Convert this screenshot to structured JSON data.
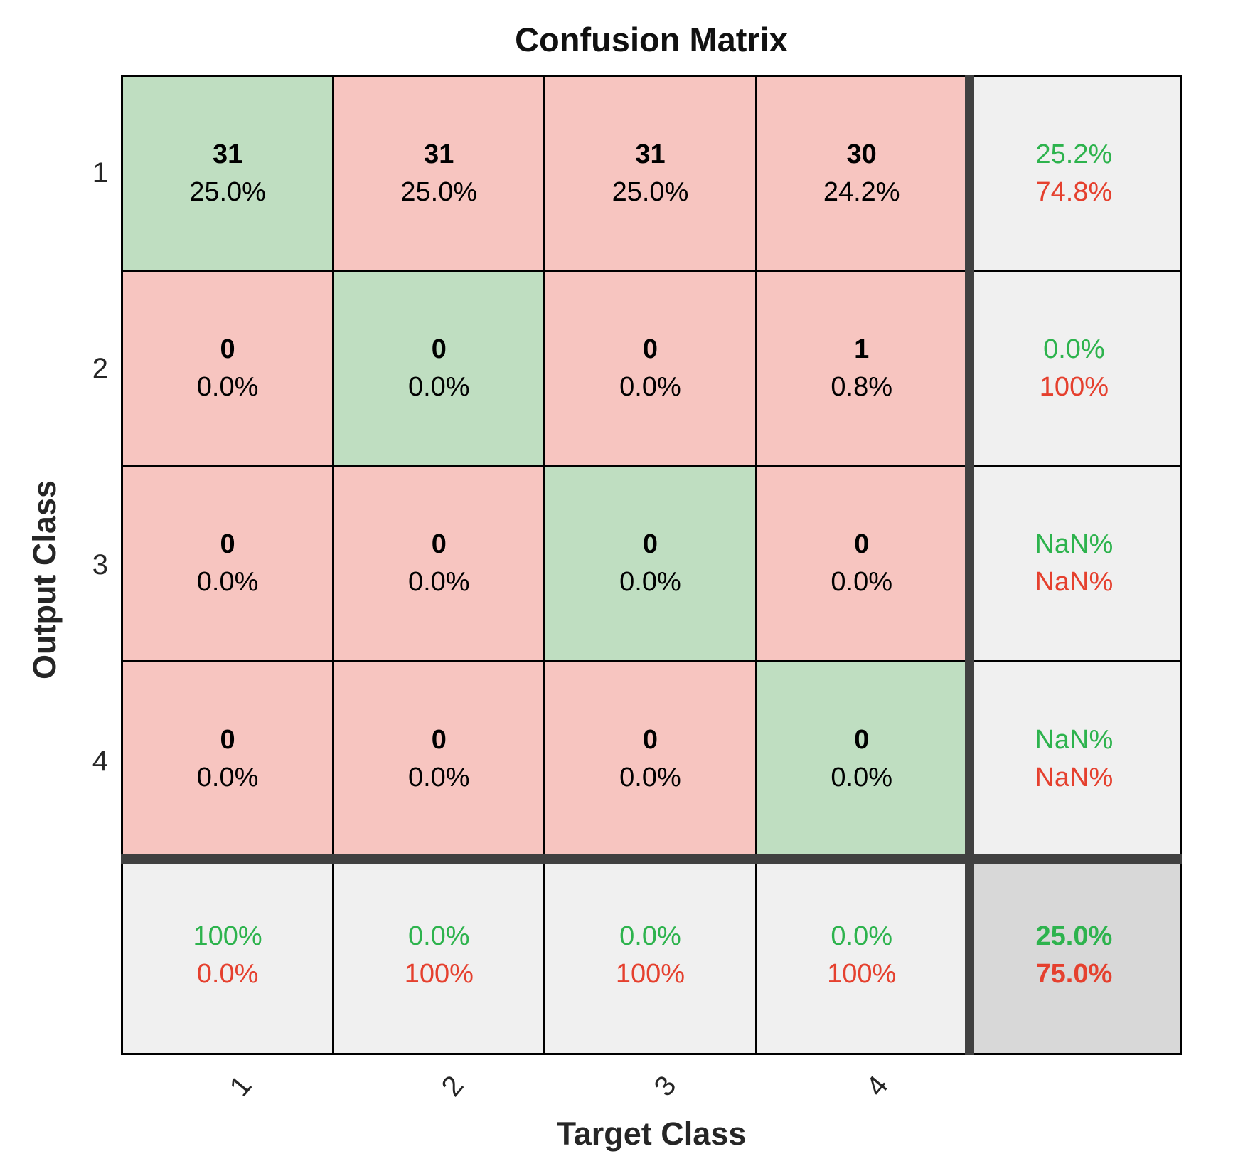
{
  "title": "Confusion Matrix",
  "axes": {
    "x_label": "Target Class",
    "y_label": "Output Class",
    "x_tick_labels": [
      "1",
      "2",
      "3",
      "4"
    ],
    "y_tick_labels": [
      "1",
      "2",
      "3",
      "4"
    ]
  },
  "chart_data": {
    "type": "heatmap",
    "title": "Confusion Matrix",
    "xlabel": "Target Class",
    "ylabel": "Output Class",
    "classes": [
      "1",
      "2",
      "3",
      "4"
    ],
    "counts": [
      [
        31,
        31,
        31,
        30
      ],
      [
        0,
        0,
        0,
        1
      ],
      [
        0,
        0,
        0,
        0
      ],
      [
        0,
        0,
        0,
        0
      ]
    ],
    "percent_of_total": [
      [
        "25.0%",
        "25.0%",
        "25.0%",
        "24.2%"
      ],
      [
        "0.0%",
        "0.0%",
        "0.0%",
        "0.8%"
      ],
      [
        "0.0%",
        "0.0%",
        "0.0%",
        "0.0%"
      ],
      [
        "0.0%",
        "0.0%",
        "0.0%",
        "0.0%"
      ]
    ],
    "row_summary": [
      {
        "top": "25.2%",
        "bottom": "74.8%"
      },
      {
        "top": "0.0%",
        "bottom": "100%"
      },
      {
        "top": "NaN%",
        "bottom": "NaN%"
      },
      {
        "top": "NaN%",
        "bottom": "NaN%"
      }
    ],
    "col_summary": [
      {
        "top": "100%",
        "bottom": "0.0%"
      },
      {
        "top": "0.0%",
        "bottom": "100%"
      },
      {
        "top": "0.0%",
        "bottom": "100%"
      },
      {
        "top": "0.0%",
        "bottom": "100%"
      }
    ],
    "overall": {
      "top": "25.0%",
      "bottom": "75.0%"
    },
    "layout": {
      "diagonal_is_green": true,
      "summary_row_position": "bottom",
      "summary_column_position": "right",
      "x_tick_rotation_deg": -50
    },
    "colors": {
      "diagonal_fill": "#bfdec1",
      "off_diagonal_fill": "#f7c5c0",
      "summary_fill": "#f0f0f0",
      "overall_fill": "#d8d8d8",
      "positive_text": "#2db34d",
      "negative_text": "#e5402e",
      "separator": "#404040",
      "grid_line": "#000000"
    }
  }
}
